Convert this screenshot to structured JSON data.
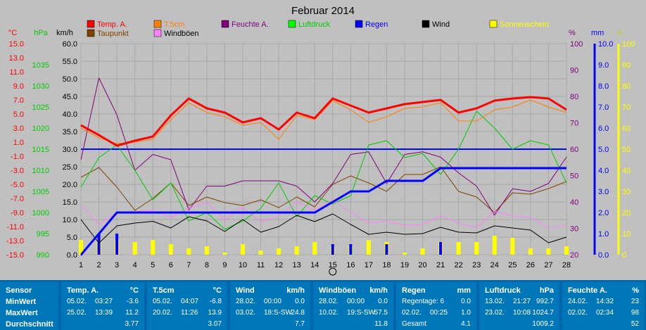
{
  "chart_data": {
    "type": "line",
    "title": "Februar 2014",
    "x": [
      1,
      2,
      3,
      4,
      5,
      6,
      7,
      8,
      9,
      10,
      11,
      12,
      13,
      14,
      15,
      16,
      17,
      18,
      19,
      20,
      21,
      22,
      23,
      24,
      25,
      26,
      27,
      28
    ],
    "axes": {
      "temp_c": {
        "label": "°C",
        "ticks": [
          "15.0",
          "13.0",
          "11.0",
          "9.0",
          "7.0",
          "5.0",
          "3.0",
          "1.0",
          "-1.0",
          "-3.0",
          "-5.0",
          "-7.0",
          "-9.0",
          "-11.0",
          "-13.0",
          "-15.0"
        ],
        "color": "#ff0000",
        "range": [
          -15,
          15
        ]
      },
      "press_hpa": {
        "label": "hPa",
        "ticks": [
          "1035",
          "1030",
          "1025",
          "1020",
          "1015",
          "1010",
          "1005",
          "1000",
          "995",
          "990"
        ],
        "color": "#00cc00",
        "range": [
          990,
          1040
        ]
      },
      "wind_kmh": {
        "label": "km/h",
        "ticks": [
          "60.0",
          "55.0",
          "50.0",
          "45.0",
          "40.0",
          "35.0",
          "30.0",
          "25.0",
          "20.0",
          "15.0",
          "10.0",
          "5.0",
          "0.0"
        ],
        "color": "#000000",
        "range": [
          0,
          60
        ]
      },
      "hum_pct": {
        "label": "%",
        "ticks": [
          "100",
          "90",
          "80",
          "70",
          "60",
          "50",
          "40",
          "30",
          "20"
        ],
        "color": "#800080",
        "range": [
          20,
          100
        ]
      },
      "rain_mm": {
        "label": "mm",
        "ticks": [
          "10.0",
          "9.0",
          "8.0",
          "7.0",
          "6.0",
          "5.0",
          "4.0",
          "3.0",
          "2.0",
          "1.0",
          "0.0"
        ],
        "color": "#0000ff",
        "range": [
          0,
          10
        ]
      },
      "sun_h": {
        "label": "h",
        "ticks": [
          "100",
          "90",
          "80",
          "70",
          "60",
          "50",
          "40",
          "30",
          "20",
          "10",
          "0"
        ],
        "color": "#ffff00",
        "range": [
          0,
          100
        ]
      }
    },
    "legend": [
      {
        "name": "Temp. A.",
        "color": "#ff0000"
      },
      {
        "name": "T.5cm",
        "color": "#ff8000"
      },
      {
        "name": "Feuchte A.",
        "color": "#800080"
      },
      {
        "name": "Luftdruck",
        "color": "#00ff00"
      },
      {
        "name": "Regen",
        "color": "#0000ff"
      },
      {
        "name": "Wind",
        "color": "#000000"
      },
      {
        "name": "Sonnenschein",
        "color": "#ffff00"
      },
      {
        "name": "Taupunkt",
        "color": "#804000"
      },
      {
        "name": "Windböen",
        "color": "#ff80ff"
      }
    ],
    "series": [
      {
        "name": "Temp. A.",
        "axis": "temp_c",
        "color": "#ff0000",
        "width": 3,
        "values": [
          3.4,
          2.0,
          0.5,
          1.2,
          1.8,
          4.8,
          7.2,
          5.8,
          5.2,
          3.8,
          4.4,
          2.8,
          5.2,
          4.4,
          7.2,
          6.2,
          5.2,
          5.8,
          6.4,
          6.7,
          7.0,
          5.2,
          5.8,
          6.9,
          7.2,
          7.4,
          7.2,
          5.6
        ]
      },
      {
        "name": "T.5cm",
        "axis": "temp_c",
        "color": "#ff8000",
        "width": 1,
        "values": [
          3.0,
          1.6,
          0.8,
          1.0,
          1.4,
          4.2,
          6.6,
          5.2,
          4.6,
          3.4,
          3.8,
          1.4,
          4.8,
          4.2,
          6.9,
          5.6,
          3.8,
          4.6,
          5.8,
          6.0,
          6.6,
          4.0,
          4.0,
          5.6,
          6.0,
          7.0,
          6.0,
          5.2
        ]
      },
      {
        "name": "Taupunkt",
        "axis": "temp_c",
        "color": "#804000",
        "width": 1,
        "values": [
          -4.0,
          -2.6,
          -5.4,
          -8.7,
          -7.0,
          -4.8,
          -8.0,
          -6.8,
          -7.6,
          -8.0,
          -7.2,
          -8.3,
          -6.8,
          -8.2,
          -5.0,
          -3.8,
          -4.8,
          -6.0,
          -3.6,
          -3.6,
          -2.5,
          -6.0,
          -6.8,
          -9.0,
          -6.2,
          -6.4,
          -5.6,
          -4.6
        ]
      },
      {
        "name": "Feuchte A.",
        "axis": "hum_pct",
        "color": "#800080",
        "width": 1,
        "values": [
          56,
          87,
          73,
          52,
          58,
          56,
          37,
          46,
          46,
          48,
          48,
          48,
          46,
          40,
          47,
          58,
          59,
          47,
          58,
          59,
          57,
          51,
          46,
          35,
          45,
          44,
          47,
          57
        ]
      },
      {
        "name": "Luftdruck",
        "axis": "press_hpa",
        "color": "#00cc00",
        "width": 1,
        "values": [
          1006,
          1013,
          1016,
          1010,
          1003,
          1007,
          998,
          1000,
          996,
          998,
          1001,
          1007,
          999,
          1004,
          1002,
          1004,
          1016,
          1017,
          1013,
          1014,
          1009,
          1015,
          1024,
          1020,
          1015,
          1017,
          1016,
          1007
        ]
      },
      {
        "name": "Wind",
        "axis": "wind_kmh",
        "color": "#000000",
        "width": 1,
        "values": [
          10.0,
          3.3,
          8.2,
          9.0,
          9.5,
          7.6,
          10.8,
          9.6,
          6.6,
          10.0,
          6.4,
          8.0,
          11.2,
          9.4,
          11.6,
          8.6,
          5.8,
          6.4,
          5.8,
          6.0,
          7.8,
          6.4,
          6.2,
          8.2,
          7.6,
          7.0,
          3.4,
          5.0
        ]
      },
      {
        "name": "Windböen",
        "axis": "wind_kmh",
        "color": "#ff80ff",
        "width": 1,
        "values": [
          14.2,
          8.6,
          12.0,
          12.2,
          12.6,
          10.6,
          13.2,
          14.8,
          10.0,
          13.4,
          9.4,
          11.0,
          15.0,
          12.6,
          15.6,
          12.0,
          9.0,
          9.6,
          8.4,
          8.6,
          11.0,
          9.0,
          7.6,
          12.4,
          11.0,
          10.6,
          7.6,
          8.4
        ]
      },
      {
        "name": "Regen",
        "axis": "rain_mm",
        "color": "#0000ff",
        "width": 3,
        "step": true,
        "values": [
          0.0,
          1.0,
          2.0,
          2.0,
          2.0,
          2.0,
          2.0,
          2.0,
          2.0,
          2.0,
          2.0,
          2.0,
          2.0,
          2.0,
          2.5,
          3.0,
          3.0,
          3.5,
          3.5,
          3.5,
          4.1,
          4.1,
          4.1,
          4.1,
          4.1,
          4.1,
          4.1,
          4.1
        ]
      }
    ],
    "limit_line": {
      "axis": "rain_mm",
      "value": 5.0,
      "color": "#0000ff"
    },
    "rain_daily": [
      0.0,
      1.0,
      1.0,
      0,
      0,
      0,
      0,
      0,
      0,
      0,
      0,
      0,
      0,
      0,
      0.5,
      0.5,
      0,
      0.5,
      0,
      0,
      0.6,
      0,
      0,
      0,
      0,
      0,
      0,
      0
    ],
    "sun_daily": [
      7,
      7,
      7,
      6,
      7,
      5,
      3,
      4,
      1,
      5,
      2,
      3,
      4,
      6,
      4,
      4,
      7,
      6,
      1,
      3,
      6,
      6,
      6,
      9,
      8,
      3,
      3,
      4
    ]
  },
  "table": {
    "sensor": {
      "title": "Sensor",
      "rows": [
        "MinWert",
        "MaxWert",
        "Durchschnitt"
      ]
    },
    "columns": [
      {
        "name": "Temp. A.",
        "unit": "°C",
        "rows": [
          [
            "05.02.",
            "03:27",
            "-3.6"
          ],
          [
            "25.02.",
            "13:39",
            "11.2"
          ],
          [
            "",
            "",
            "3.77"
          ]
        ]
      },
      {
        "name": "T.5cm",
        "unit": "°C",
        "rows": [
          [
            "05.02.",
            "04:07",
            "-6.8"
          ],
          [
            "20.02.",
            "11:26",
            "13.9"
          ],
          [
            "",
            "",
            "3.07"
          ]
        ]
      },
      {
        "name": "Wind",
        "unit": "km/h",
        "rows": [
          [
            "28.02.",
            "00:00",
            "0.0"
          ],
          [
            "03.02.",
            "18:S-SW",
            "24.8"
          ],
          [
            "",
            "",
            "7.7"
          ]
        ]
      },
      {
        "name": "Windböen",
        "unit": "km/h",
        "rows": [
          [
            "28.02.",
            "00:00",
            "0.0"
          ],
          [
            "10.02.",
            "19:S-SW",
            "57.5"
          ],
          [
            "",
            "",
            "11.8"
          ]
        ]
      },
      {
        "name": "Regen",
        "unit": "mm",
        "rows": [
          [
            "Regentage: 6",
            "",
            "0.0"
          ],
          [
            "02.02.",
            "00:25",
            "1.0"
          ],
          [
            "Gesamt",
            "",
            "4.1"
          ]
        ]
      },
      {
        "name": "Luftdruck",
        "unit": "hPa",
        "rows": [
          [
            "13.02.",
            "21:27",
            "992.7"
          ],
          [
            "23.02.",
            "10:08",
            "1024.7"
          ],
          [
            "",
            "",
            "1009.2"
          ]
        ]
      },
      {
        "name": "Feuchte A.",
        "unit": "%",
        "rows": [
          [
            "24.02.",
            "14:32",
            "23"
          ],
          [
            "02.02.",
            "02:34",
            "98"
          ],
          [
            "",
            "",
            "52"
          ]
        ]
      }
    ]
  }
}
